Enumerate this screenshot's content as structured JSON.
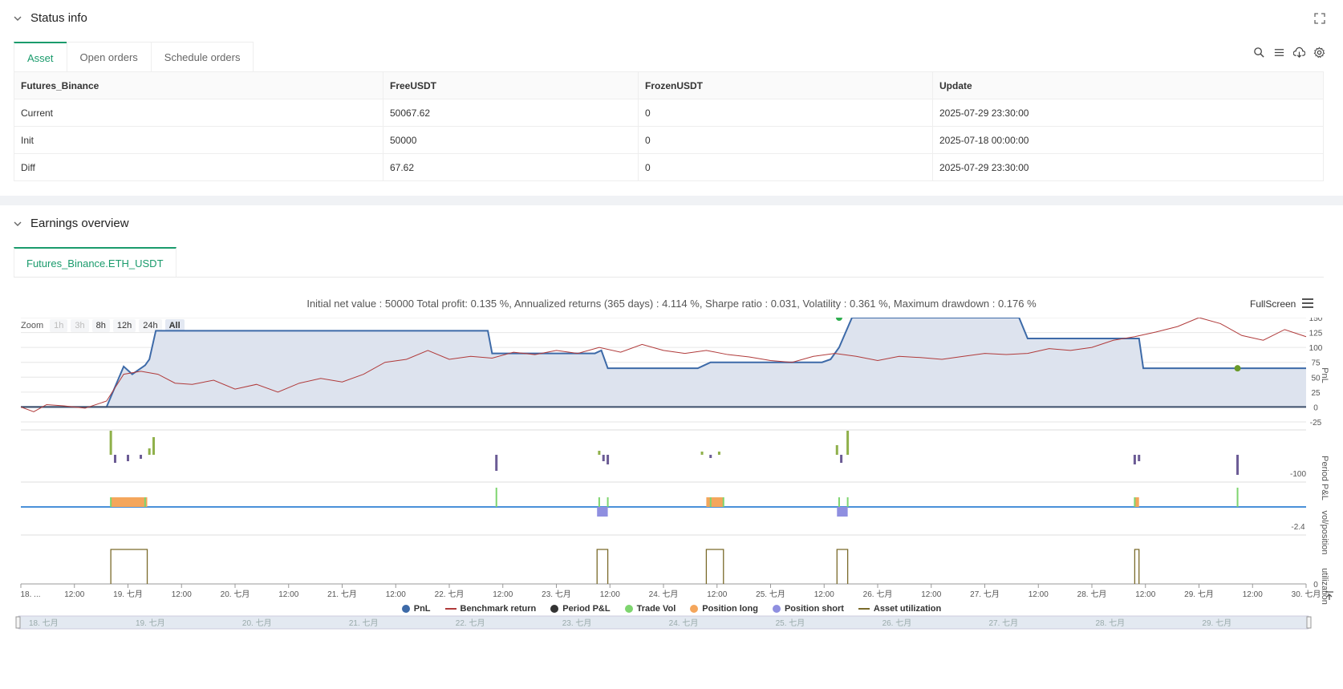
{
  "status": {
    "title": "Status info",
    "tabs": [
      "Asset",
      "Open orders",
      "Schedule orders"
    ],
    "table": {
      "headers": [
        "Futures_Binance",
        "FreeUSDT",
        "FrozenUSDT",
        "Update"
      ],
      "rows": [
        [
          "Current",
          "50067.62",
          "0",
          "2025-07-29 23:30:00"
        ],
        [
          "Init",
          "50000",
          "0",
          "2025-07-18 00:00:00"
        ],
        [
          "Diff",
          "67.62",
          "0",
          "2025-07-29 23:30:00"
        ]
      ]
    }
  },
  "earnings": {
    "title": "Earnings overview",
    "tab": "Futures_Binance.ETH_USDT",
    "summary": "Initial net value : 50000 Total profit: 0.135 %, Annualized returns (365 days) : 4.114 %, Sharpe ratio : 0.031, Volatility : 0.361 %, Maximum drawdown : 0.176 %",
    "fullscreen_label": "FullScreen",
    "zoom": {
      "label": "Zoom",
      "buttons": [
        "1h",
        "3h",
        "8h",
        "12h",
        "24h",
        "All"
      ]
    }
  },
  "chart_data": {
    "type": "line",
    "x_ticks": [
      "18. ...",
      "12:00",
      "19. 七月",
      "12:00",
      "20. 七月",
      "12:00",
      "21. 七月",
      "12:00",
      "22. 七月",
      "12:00",
      "23. 七月",
      "12:00",
      "24. 七月",
      "12:00",
      "25. 七月",
      "12:00",
      "26. 七月",
      "12:00",
      "27. 七月",
      "12:00",
      "28. 七月",
      "12:00",
      "29. 七月",
      "12:00",
      "30. 七月"
    ],
    "navigator_ticks": [
      "18. 七月",
      "19. 七月",
      "20. 七月",
      "21. 七月",
      "22. 七月",
      "23. 七月",
      "24. 七月",
      "25. 七月",
      "26. 七月",
      "27. 七月",
      "28. 七月",
      "29. 七月"
    ],
    "panes": [
      {
        "label": "PnL",
        "ticks": [
          "150",
          "125",
          "100",
          "75",
          "50",
          "25",
          "0",
          "-25"
        ],
        "ylim": [
          -25,
          150
        ]
      },
      {
        "label": "Period P&L",
        "ticks": [
          "-100"
        ]
      },
      {
        "label": "vol/position",
        "ticks": [
          "-2.4"
        ]
      },
      {
        "label": "utilization",
        "ticks": [
          "0"
        ]
      }
    ],
    "series": [
      {
        "name": "PnL",
        "color": "#3d6aa8",
        "points": [
          [
            0,
            0
          ],
          [
            2,
            0
          ],
          [
            2.4,
            68
          ],
          [
            2.6,
            55
          ],
          [
            2.9,
            70
          ],
          [
            3.0,
            80
          ],
          [
            3.15,
            128
          ],
          [
            10.9,
            128
          ],
          [
            11.0,
            90
          ],
          [
            13.4,
            90
          ],
          [
            13.55,
            95
          ],
          [
            13.7,
            65
          ],
          [
            15.8,
            65
          ],
          [
            15.95,
            70
          ],
          [
            16.1,
            75
          ],
          [
            18.7,
            75
          ],
          [
            18.9,
            80
          ],
          [
            19.1,
            100
          ],
          [
            19.4,
            150
          ],
          [
            23.3,
            150
          ],
          [
            23.5,
            115
          ],
          [
            26.1,
            115
          ],
          [
            26.2,
            65
          ],
          [
            30,
            65
          ]
        ]
      },
      {
        "name": "Benchmark return",
        "color": "#b03a3a",
        "points": [
          [
            0,
            0
          ],
          [
            0.3,
            -8
          ],
          [
            0.6,
            4
          ],
          [
            1.0,
            2
          ],
          [
            1.5,
            -2
          ],
          [
            2.0,
            10
          ],
          [
            2.4,
            55
          ],
          [
            2.8,
            60
          ],
          [
            3.2,
            55
          ],
          [
            3.6,
            40
          ],
          [
            4.0,
            38
          ],
          [
            4.5,
            45
          ],
          [
            5.0,
            30
          ],
          [
            5.5,
            38
          ],
          [
            6.0,
            25
          ],
          [
            6.5,
            40
          ],
          [
            7.0,
            48
          ],
          [
            7.5,
            42
          ],
          [
            8.0,
            55
          ],
          [
            8.5,
            75
          ],
          [
            9.0,
            80
          ],
          [
            9.5,
            95
          ],
          [
            10.0,
            80
          ],
          [
            10.5,
            85
          ],
          [
            11.0,
            82
          ],
          [
            11.5,
            92
          ],
          [
            12.0,
            88
          ],
          [
            12.5,
            95
          ],
          [
            13.0,
            90
          ],
          [
            13.5,
            100
          ],
          [
            14.0,
            92
          ],
          [
            14.5,
            105
          ],
          [
            15.0,
            95
          ],
          [
            15.5,
            90
          ],
          [
            16.0,
            95
          ],
          [
            16.5,
            88
          ],
          [
            17.0,
            84
          ],
          [
            17.5,
            78
          ],
          [
            18.0,
            75
          ],
          [
            18.5,
            85
          ],
          [
            19.0,
            90
          ],
          [
            19.5,
            85
          ],
          [
            20.0,
            78
          ],
          [
            20.5,
            85
          ],
          [
            21.0,
            83
          ],
          [
            21.5,
            80
          ],
          [
            22.0,
            85
          ],
          [
            22.5,
            90
          ],
          [
            23.0,
            88
          ],
          [
            23.5,
            90
          ],
          [
            24.0,
            98
          ],
          [
            24.5,
            95
          ],
          [
            25.0,
            100
          ],
          [
            25.5,
            112
          ],
          [
            26.0,
            118
          ],
          [
            26.5,
            126
          ],
          [
            27.0,
            135
          ],
          [
            27.5,
            150
          ],
          [
            28.0,
            140
          ],
          [
            28.5,
            120
          ],
          [
            29.0,
            112
          ],
          [
            29.5,
            130
          ],
          [
            30,
            118
          ]
        ]
      }
    ],
    "period_pnl": [
      [
        2.1,
        30
      ],
      [
        2.2,
        -10
      ],
      [
        2.5,
        -8
      ],
      [
        2.8,
        -5
      ],
      [
        3.0,
        8
      ],
      [
        3.1,
        22
      ],
      [
        11.1,
        -20
      ],
      [
        13.5,
        5
      ],
      [
        13.6,
        -8
      ],
      [
        13.7,
        -12
      ],
      [
        15.9,
        4
      ],
      [
        16.1,
        -4
      ],
      [
        16.3,
        4
      ],
      [
        19.05,
        12
      ],
      [
        19.15,
        -10
      ],
      [
        19.3,
        30
      ],
      [
        26.0,
        -12
      ],
      [
        26.1,
        -8
      ],
      [
        28.4,
        -25
      ]
    ],
    "trade_vol": [
      [
        2.1,
        1
      ],
      [
        2.9,
        1
      ],
      [
        11.1,
        2
      ],
      [
        13.5,
        1
      ],
      [
        13.7,
        1
      ],
      [
        16.1,
        1
      ],
      [
        16.4,
        1
      ],
      [
        19.1,
        1
      ],
      [
        19.3,
        1
      ],
      [
        26.0,
        1
      ],
      [
        28.4,
        2
      ]
    ],
    "position_long": [
      [
        2.1,
        2.95
      ],
      [
        16.0,
        16.4
      ],
      [
        26.0,
        26.1
      ]
    ],
    "position_short": [
      [
        13.45,
        13.7
      ],
      [
        19.05,
        19.3
      ]
    ],
    "utilization": [
      [
        2.1,
        2.95
      ],
      [
        13.45,
        13.7
      ],
      [
        16.0,
        16.4
      ],
      [
        19.05,
        19.3
      ],
      [
        26.0,
        26.1
      ]
    ],
    "legend": [
      "PnL",
      "Benchmark return",
      "Period P&L",
      "Trade Vol",
      "Position long",
      "Position short",
      "Asset utilization"
    ],
    "colors": {
      "pnl": "#3d6aa8",
      "benchmark": "#b03a3a",
      "period_pnl": "#333333",
      "trade_vol": "#7ed56f",
      "position_long": "#f4a65c",
      "position_short": "#8f8fe0",
      "utilization": "#7a6a2a"
    }
  }
}
